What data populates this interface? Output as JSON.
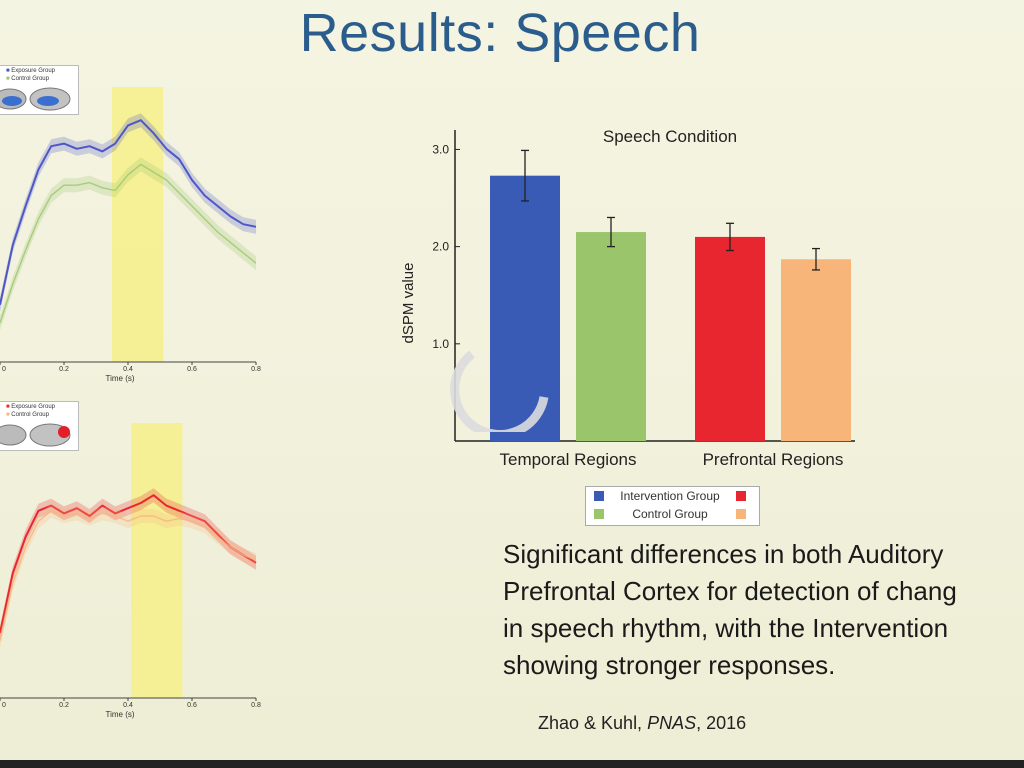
{
  "slide": {
    "title": "Results: Speech",
    "body_lines": [
      "Significant differences in both Auditory",
      "Prefrontal Cortex for detection of chang",
      "in speech rhythm, with the Intervention",
      "showing stronger responses."
    ],
    "citation_authors": "Zhao & Kuhl, ",
    "citation_journal": "PNAS",
    "citation_year": ", 2016"
  },
  "colors": {
    "title": "#2b5d8c",
    "intervention_temporal": "#3a5bb5",
    "control_temporal": "#9bc56a",
    "intervention_prefrontal": "#e8262f",
    "control_prefrontal": "#f8b57a",
    "highlight": "#f6f08a"
  },
  "chart_data": [
    {
      "type": "bar",
      "title": "Speech Condition",
      "ylabel": "dSPM value",
      "xlabel": "",
      "ylim": [
        0,
        3.2
      ],
      "yticks": [
        "1.0",
        "2.0",
        "3.0"
      ],
      "ytick_values": [
        1.0,
        2.0,
        3.0
      ],
      "categories": [
        "Temporal Regions",
        "Prefrontal Regions"
      ],
      "series": [
        {
          "name": "Intervention Group",
          "values": [
            2.73,
            2.1
          ],
          "errors": [
            0.26,
            0.14
          ]
        },
        {
          "name": "Control Group",
          "values": [
            2.15,
            1.87
          ],
          "errors": [
            0.15,
            0.11
          ]
        }
      ],
      "legend": {
        "position": "below",
        "entries": [
          "Intervention Group",
          "Control Group"
        ]
      }
    },
    {
      "type": "line",
      "xlabel": "Time (s)",
      "xticks": [
        "0",
        "0.2",
        "0.4",
        "0.6",
        "0.8"
      ],
      "xlim": [
        0,
        0.8
      ],
      "ylim": [
        0,
        1
      ],
      "highlight_window": [
        0.35,
        0.51
      ],
      "legend": [
        "Exposure Group",
        "Control Group"
      ],
      "series": [
        {
          "name": "Exposure Group",
          "x": [
            0,
            0.04,
            0.08,
            0.12,
            0.16,
            0.2,
            0.24,
            0.28,
            0.32,
            0.36,
            0.4,
            0.44,
            0.48,
            0.52,
            0.56,
            0.6,
            0.64,
            0.68,
            0.72,
            0.76,
            0.8
          ],
          "y": [
            0.22,
            0.45,
            0.6,
            0.74,
            0.83,
            0.84,
            0.82,
            0.83,
            0.81,
            0.84,
            0.91,
            0.93,
            0.88,
            0.82,
            0.78,
            0.7,
            0.64,
            0.6,
            0.56,
            0.53,
            0.52
          ]
        },
        {
          "name": "Control Group",
          "x": [
            0,
            0.04,
            0.08,
            0.12,
            0.16,
            0.2,
            0.24,
            0.28,
            0.32,
            0.36,
            0.4,
            0.44,
            0.48,
            0.52,
            0.56,
            0.6,
            0.64,
            0.68,
            0.72,
            0.76,
            0.8
          ],
          "y": [
            0.15,
            0.3,
            0.43,
            0.55,
            0.64,
            0.68,
            0.68,
            0.69,
            0.67,
            0.66,
            0.72,
            0.76,
            0.73,
            0.7,
            0.65,
            0.6,
            0.55,
            0.5,
            0.46,
            0.42,
            0.38
          ]
        }
      ]
    },
    {
      "type": "line",
      "xlabel": "Time (s)",
      "xticks": [
        "0",
        "0.2",
        "0.4",
        "0.6",
        "0.8"
      ],
      "xlim": [
        0,
        0.8
      ],
      "ylim": [
        0,
        1
      ],
      "highlight_window": [
        0.41,
        0.57
      ],
      "legend": [
        "Exposure Group",
        "Control Group"
      ],
      "series": [
        {
          "name": "Exposure Group",
          "x": [
            0,
            0.04,
            0.08,
            0.12,
            0.16,
            0.2,
            0.24,
            0.28,
            0.32,
            0.36,
            0.4,
            0.44,
            0.48,
            0.52,
            0.56,
            0.6,
            0.64,
            0.68,
            0.72,
            0.76,
            0.8
          ],
          "y": [
            0.25,
            0.48,
            0.62,
            0.72,
            0.74,
            0.71,
            0.73,
            0.7,
            0.74,
            0.71,
            0.73,
            0.75,
            0.78,
            0.74,
            0.72,
            0.7,
            0.68,
            0.63,
            0.58,
            0.55,
            0.52
          ]
        },
        {
          "name": "Control Group",
          "x": [
            0,
            0.04,
            0.08,
            0.12,
            0.16,
            0.2,
            0.24,
            0.28,
            0.32,
            0.36,
            0.4,
            0.44,
            0.48,
            0.52,
            0.56,
            0.6,
            0.64,
            0.68,
            0.72,
            0.76,
            0.8
          ],
          "y": [
            0.22,
            0.44,
            0.58,
            0.68,
            0.72,
            0.7,
            0.71,
            0.69,
            0.71,
            0.7,
            0.68,
            0.7,
            0.7,
            0.68,
            0.69,
            0.68,
            0.66,
            0.62,
            0.58,
            0.55,
            0.53
          ]
        }
      ]
    }
  ]
}
